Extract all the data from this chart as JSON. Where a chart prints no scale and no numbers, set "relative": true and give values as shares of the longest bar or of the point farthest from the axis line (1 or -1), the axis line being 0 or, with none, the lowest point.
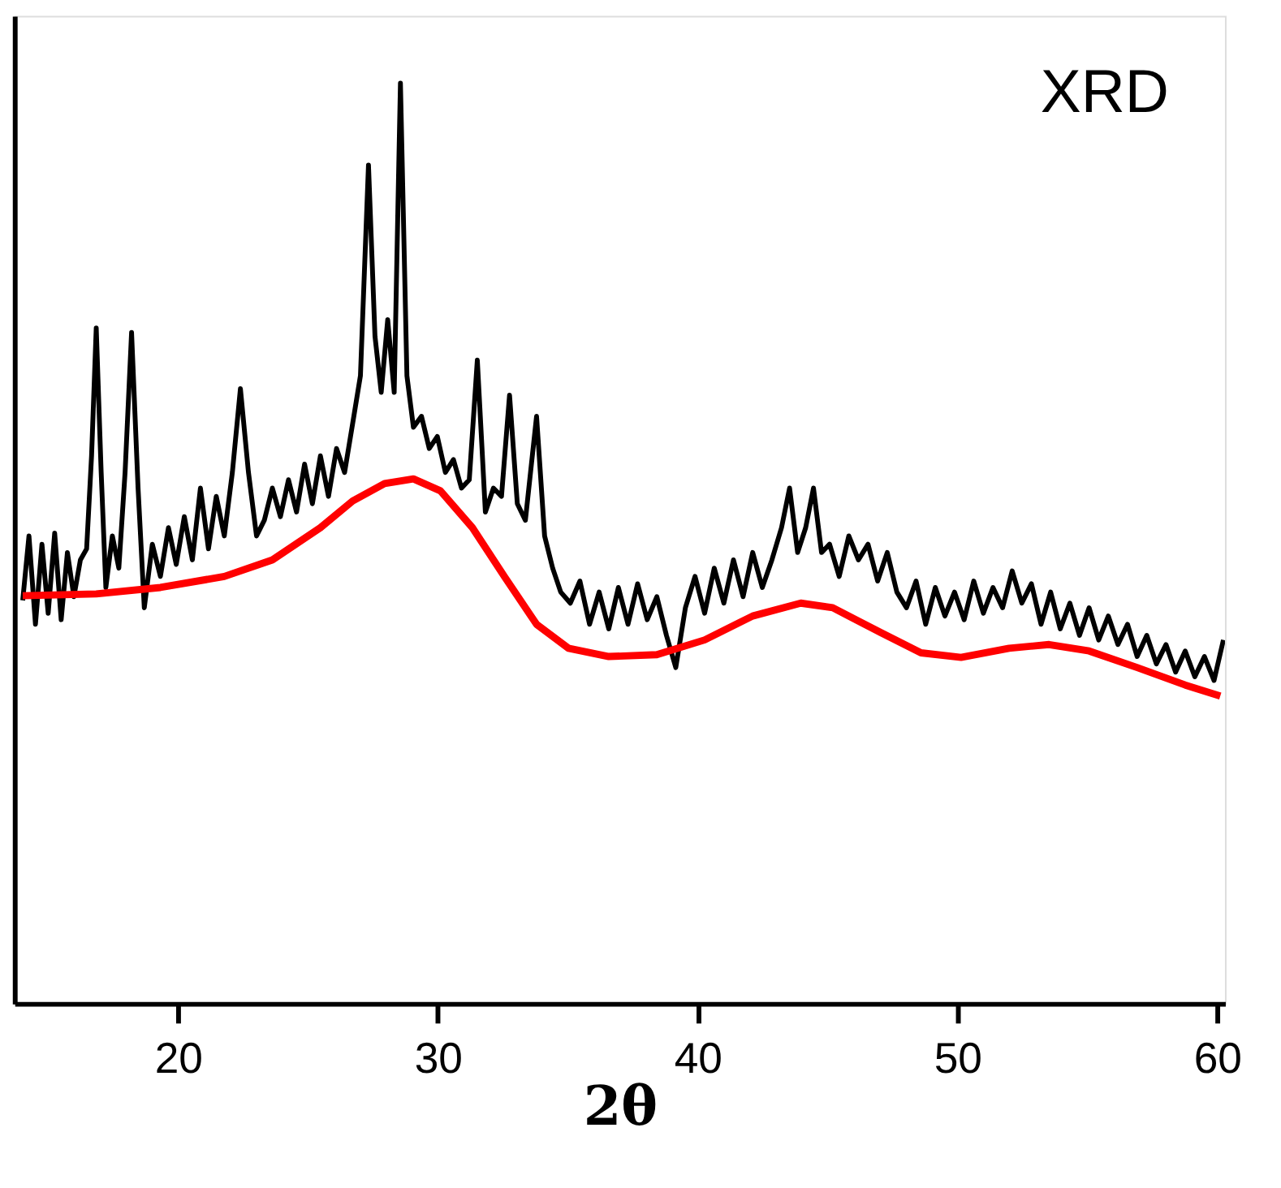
{
  "chart_data": {
    "type": "line",
    "xlabel": "2θ",
    "annotations": [
      "XRD"
    ],
    "relative": true,
    "xlim": [
      13.7,
      60.3
    ],
    "xticks": [
      20,
      30,
      40,
      50,
      60
    ],
    "series": [
      {
        "color": "#000000",
        "x": [
          14.02,
          14.26,
          14.51,
          14.76,
          15.0,
          15.25,
          15.5,
          15.74,
          15.99,
          16.24,
          16.48,
          16.67,
          16.85,
          17.04,
          17.22,
          17.47,
          17.72,
          17.96,
          18.21,
          18.46,
          18.7,
          19.01,
          19.32,
          19.63,
          19.93,
          20.24,
          20.55,
          20.86,
          21.17,
          21.47,
          21.78,
          22.09,
          22.4,
          22.71,
          23.02,
          23.32,
          23.63,
          23.94,
          24.25,
          24.56,
          24.87,
          25.17,
          25.48,
          25.79,
          26.1,
          26.41,
          26.72,
          27.02,
          27.33,
          27.58,
          27.82,
          28.07,
          28.32,
          28.56,
          28.81,
          29.06,
          29.37,
          29.67,
          29.98,
          30.29,
          30.6,
          30.91,
          31.21,
          31.52,
          31.83,
          32.14,
          32.45,
          32.76,
          33.06,
          33.37,
          33.8,
          34.11,
          34.42,
          34.73,
          35.1,
          35.47,
          35.84,
          36.21,
          36.58,
          36.95,
          37.32,
          37.69,
          38.06,
          38.43,
          38.8,
          39.16,
          39.53,
          39.9,
          40.27,
          40.64,
          41.01,
          41.38,
          41.75,
          42.12,
          42.49,
          42.86,
          43.23,
          43.54,
          43.85,
          44.16,
          44.46,
          44.77,
          45.08,
          45.45,
          45.82,
          46.19,
          46.56,
          46.93,
          47.3,
          47.67,
          48.04,
          48.41,
          48.78,
          49.15,
          49.52,
          49.89,
          50.26,
          50.63,
          51.0,
          51.37,
          51.74,
          52.11,
          52.48,
          52.85,
          53.22,
          53.59,
          53.96,
          54.33,
          54.7,
          55.07,
          55.44,
          55.81,
          56.18,
          56.55,
          56.92,
          57.29,
          57.66,
          58.03,
          58.4,
          58.77,
          59.14,
          59.51,
          59.88,
          60.24
        ],
        "values": [
          0.438,
          0.508,
          0.412,
          0.499,
          0.424,
          0.511,
          0.417,
          0.49,
          0.442,
          0.482,
          0.494,
          0.595,
          0.734,
          0.577,
          0.452,
          0.508,
          0.473,
          0.577,
          0.729,
          0.56,
          0.43,
          0.499,
          0.464,
          0.517,
          0.477,
          0.529,
          0.482,
          0.56,
          0.494,
          0.551,
          0.508,
          0.577,
          0.668,
          0.577,
          0.508,
          0.525,
          0.56,
          0.529,
          0.569,
          0.534,
          0.586,
          0.543,
          0.595,
          0.551,
          0.603,
          0.577,
          0.63,
          0.682,
          0.911,
          0.725,
          0.664,
          0.743,
          0.664,
          1.0,
          0.682,
          0.626,
          0.638,
          0.603,
          0.616,
          0.577,
          0.591,
          0.56,
          0.569,
          0.699,
          0.534,
          0.56,
          0.551,
          0.661,
          0.543,
          0.525,
          0.638,
          0.508,
          0.473,
          0.447,
          0.435,
          0.459,
          0.412,
          0.447,
          0.407,
          0.452,
          0.412,
          0.456,
          0.417,
          0.442,
          0.4,
          0.365,
          0.43,
          0.464,
          0.424,
          0.473,
          0.435,
          0.482,
          0.442,
          0.49,
          0.452,
          0.482,
          0.517,
          0.56,
          0.49,
          0.517,
          0.56,
          0.49,
          0.499,
          0.464,
          0.508,
          0.482,
          0.499,
          0.459,
          0.49,
          0.447,
          0.43,
          0.459,
          0.412,
          0.452,
          0.421,
          0.447,
          0.417,
          0.459,
          0.424,
          0.452,
          0.43,
          0.47,
          0.435,
          0.456,
          0.412,
          0.447,
          0.407,
          0.435,
          0.4,
          0.43,
          0.395,
          0.421,
          0.39,
          0.412,
          0.377,
          0.4,
          0.369,
          0.39,
          0.36,
          0.383,
          0.355,
          0.377,
          0.351,
          0.395
        ]
      },
      {
        "color": "#ff0000",
        "x": [
          14.02,
          16.85,
          19.32,
          21.78,
          23.63,
          25.48,
          26.72,
          27.95,
          29.06,
          30.1,
          31.33,
          32.56,
          33.8,
          35.03,
          36.58,
          38.43,
          40.27,
          42.12,
          43.97,
          45.2,
          47.05,
          48.6,
          50.14,
          51.99,
          53.53,
          55.07,
          56.92,
          58.77,
          60.12
        ],
        "values": [
          0.443,
          0.445,
          0.452,
          0.464,
          0.482,
          0.517,
          0.546,
          0.565,
          0.57,
          0.557,
          0.517,
          0.464,
          0.412,
          0.386,
          0.377,
          0.379,
          0.395,
          0.421,
          0.435,
          0.43,
          0.403,
          0.381,
          0.376,
          0.386,
          0.39,
          0.383,
          0.365,
          0.346,
          0.334
        ]
      }
    ]
  }
}
